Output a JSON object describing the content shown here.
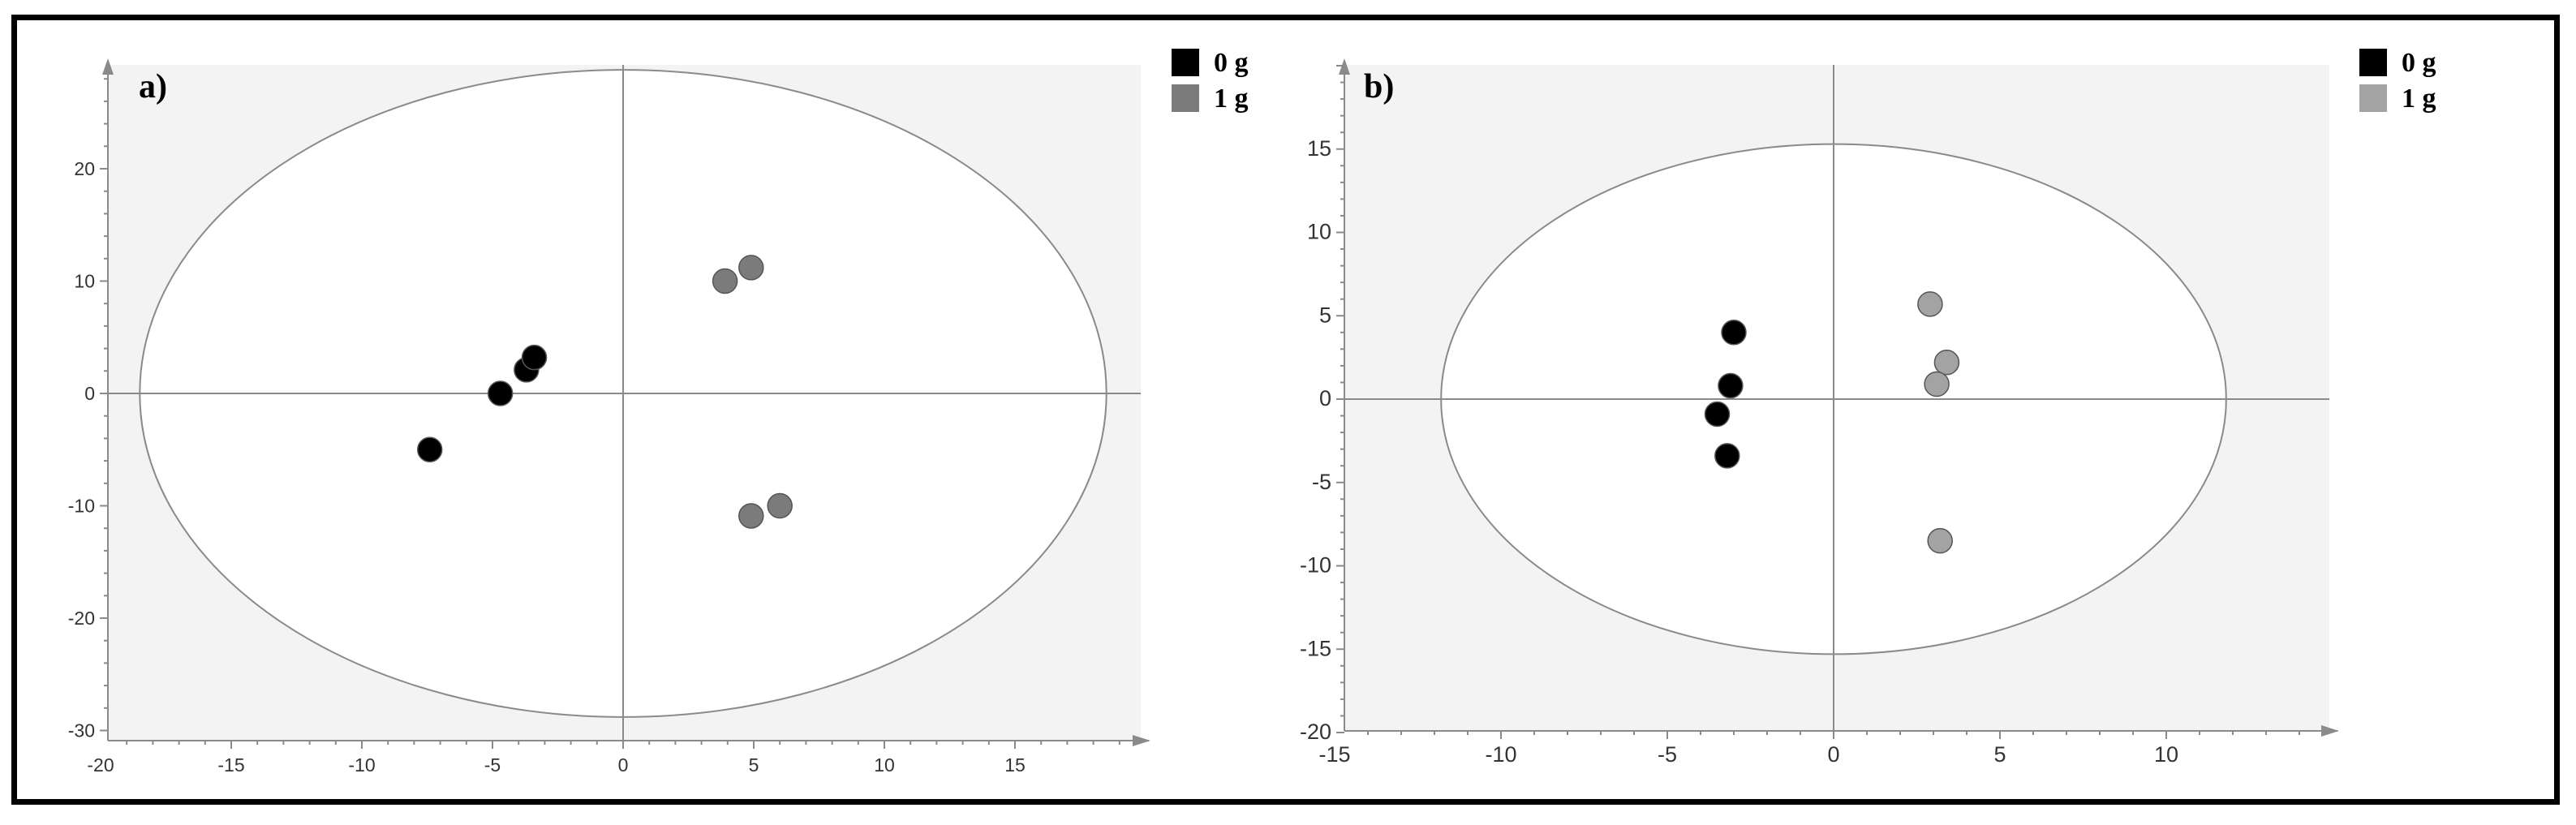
{
  "chart_data": [
    {
      "type": "scatter",
      "panel_label": "a)",
      "title": "",
      "xlabel": "",
      "ylabel": "",
      "xlim": [
        -20,
        20
      ],
      "ylim": [
        -30,
        30
      ],
      "x_ticks": [
        "-20",
        "-15",
        "-10",
        "-5",
        "0",
        "5",
        "10",
        "15"
      ],
      "y_ticks": [
        "-30",
        "-20",
        "-10",
        "0",
        "10",
        "20"
      ],
      "ellipse": {
        "rx": 18.5,
        "ry": 28.8
      },
      "series": [
        {
          "name": "0 g",
          "color": "#000000",
          "points": [
            [
              -7.4,
              -5.0
            ],
            [
              -4.7,
              0.0
            ],
            [
              -3.7,
              2.1
            ],
            [
              -3.4,
              3.2
            ]
          ]
        },
        {
          "name": "1 g",
          "color": "#7b7b7b",
          "points": [
            [
              3.9,
              10.0
            ],
            [
              4.9,
              11.2
            ],
            [
              4.9,
              -10.9
            ],
            [
              6.0,
              -10.0
            ]
          ]
        }
      ],
      "legend_position": "top-right"
    },
    {
      "type": "scatter",
      "panel_label": "b)",
      "title": "",
      "xlabel": "",
      "ylabel": "",
      "xlim": [
        -15,
        15
      ],
      "ylim": [
        -20,
        20
      ],
      "x_ticks": [
        "-15",
        "-10",
        "-5",
        "0",
        "5",
        "10"
      ],
      "y_ticks": [
        "-20",
        "-15",
        "-10",
        "-5",
        "0",
        "5",
        "10",
        "15"
      ],
      "ellipse": {
        "rx": 11.8,
        "ry": 15.3
      },
      "series": [
        {
          "name": "0 g",
          "color": "#000000",
          "points": [
            [
              -3.0,
              4.0
            ],
            [
              -3.1,
              0.8
            ],
            [
              -3.5,
              -0.9
            ],
            [
              -3.2,
              -3.4
            ]
          ]
        },
        {
          "name": "1 g",
          "color": "#a3a3a3",
          "points": [
            [
              2.9,
              5.7
            ],
            [
              3.4,
              2.2
            ],
            [
              3.1,
              0.9
            ],
            [
              3.2,
              -8.5
            ]
          ]
        }
      ],
      "legend_position": "top-right"
    }
  ]
}
